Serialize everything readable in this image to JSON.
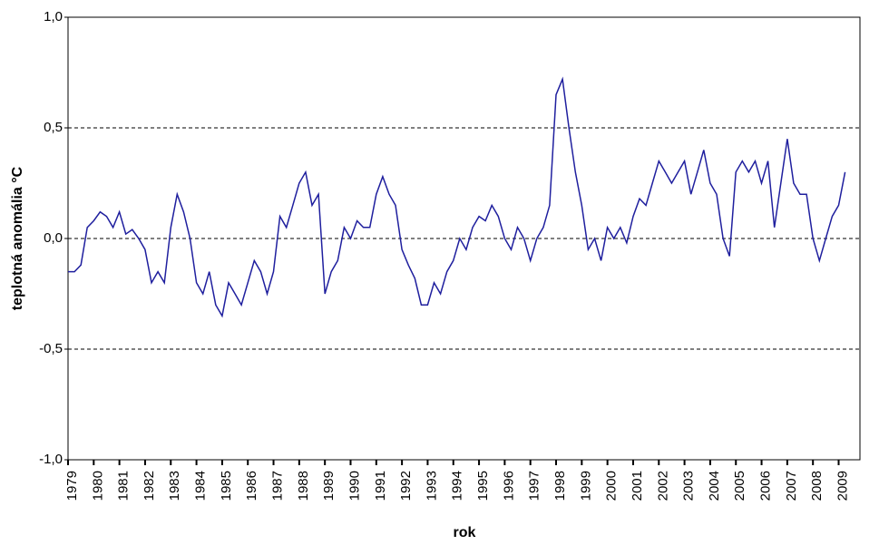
{
  "chart_data": {
    "type": "line",
    "y_label": "teplotná anomália °C",
    "x_label": "rok",
    "x": [
      1979,
      1979.25,
      1979.5,
      1979.75,
      1980,
      1980.25,
      1980.5,
      1980.75,
      1981,
      1981.25,
      1981.5,
      1981.75,
      1982,
      1982.25,
      1982.5,
      1982.75,
      1983,
      1983.25,
      1983.5,
      1983.75,
      1984,
      1984.25,
      1984.5,
      1984.75,
      1985,
      1985.25,
      1985.5,
      1985.75,
      1986,
      1986.25,
      1986.5,
      1986.75,
      1987,
      1987.25,
      1987.5,
      1987.75,
      1988,
      1988.25,
      1988.5,
      1988.75,
      1989,
      1989.25,
      1989.5,
      1989.75,
      1990,
      1990.25,
      1990.5,
      1990.75,
      1991,
      1991.25,
      1991.5,
      1991.75,
      1992,
      1992.25,
      1992.5,
      1992.75,
      1993,
      1993.25,
      1993.5,
      1993.75,
      1994,
      1994.25,
      1994.5,
      1994.75,
      1995,
      1995.25,
      1995.5,
      1995.75,
      1996,
      1996.25,
      1996.5,
      1996.75,
      1997,
      1997.25,
      1997.5,
      1997.75,
      1998,
      1998.25,
      1998.5,
      1998.75,
      1999,
      1999.25,
      1999.5,
      1999.75,
      2000,
      2000.25,
      2000.5,
      2000.75,
      2001,
      2001.25,
      2001.5,
      2001.75,
      2002,
      2002.25,
      2002.5,
      2002.75,
      2003,
      2003.25,
      2003.5,
      2003.75,
      2004,
      2004.25,
      2004.5,
      2004.75,
      2005,
      2005.25,
      2005.5,
      2005.75,
      2006,
      2006.25,
      2006.5,
      2006.75,
      2007,
      2007.25,
      2007.5,
      2007.75,
      2008,
      2008.25,
      2008.5,
      2008.75,
      2009,
      2009.25
    ],
    "series": [
      {
        "name": "anomália",
        "color": "#1f1f9e",
        "values": [
          -0.15,
          -0.15,
          -0.12,
          0.05,
          0.08,
          0.12,
          0.1,
          0.05,
          0.12,
          0.02,
          0.04,
          0.0,
          -0.05,
          -0.2,
          -0.15,
          -0.2,
          0.05,
          0.2,
          0.12,
          0.0,
          -0.2,
          -0.25,
          -0.15,
          -0.3,
          -0.35,
          -0.2,
          -0.25,
          -0.3,
          -0.2,
          -0.1,
          -0.15,
          -0.25,
          -0.15,
          0.1,
          0.05,
          0.15,
          0.25,
          0.3,
          0.15,
          0.2,
          -0.25,
          -0.15,
          -0.1,
          0.05,
          0.0,
          0.08,
          0.05,
          0.05,
          0.2,
          0.28,
          0.2,
          0.15,
          -0.05,
          -0.12,
          -0.18,
          -0.3,
          -0.3,
          -0.2,
          -0.25,
          -0.15,
          -0.1,
          0.0,
          -0.05,
          0.05,
          0.1,
          0.08,
          0.15,
          0.1,
          0.0,
          -0.05,
          0.05,
          0.0,
          -0.1,
          0.0,
          0.05,
          0.15,
          0.65,
          0.72,
          0.5,
          0.3,
          0.15,
          -0.05,
          0.0,
          -0.1,
          0.05,
          0.0,
          0.05,
          -0.02,
          0.1,
          0.18,
          0.15,
          0.25,
          0.35,
          0.3,
          0.25,
          0.3,
          0.35,
          0.2,
          0.3,
          0.4,
          0.25,
          0.2,
          0.0,
          -0.08,
          0.3,
          0.35,
          0.3,
          0.35,
          0.25,
          0.35,
          0.05,
          0.25,
          0.45,
          0.25,
          0.2,
          0.2,
          0.0,
          -0.1,
          0.0,
          0.1,
          0.15,
          0.3
        ]
      }
    ],
    "xlim": [
      1979,
      2009.83
    ],
    "xticks": [
      1979,
      1980,
      1981,
      1982,
      1983,
      1984,
      1985,
      1986,
      1987,
      1988,
      1989,
      1990,
      1991,
      1992,
      1993,
      1994,
      1995,
      1996,
      1997,
      1998,
      1999,
      2000,
      2001,
      2002,
      2003,
      2004,
      2005,
      2006,
      2007,
      2008,
      2009
    ],
    "ylim": [
      -1.0,
      1.0
    ],
    "yticks": [
      {
        "value": -1.0,
        "label": "-1,0"
      },
      {
        "value": -0.5,
        "label": "-0,5"
      },
      {
        "value": 0.0,
        "label": "0,0"
      },
      {
        "value": 0.5,
        "label": "0,5"
      },
      {
        "value": 1.0,
        "label": "1,0"
      }
    ],
    "grid": true
  }
}
